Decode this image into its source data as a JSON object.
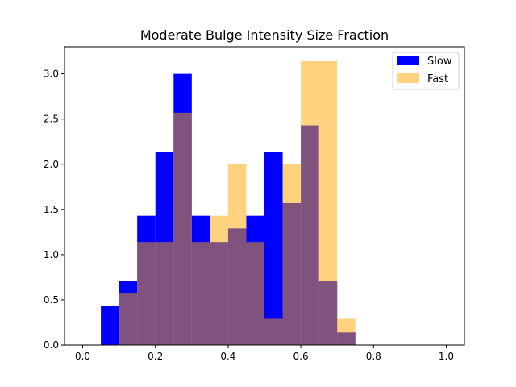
{
  "chart_data": {
    "type": "bar",
    "title": "Moderate Bulge Intensity Size Fraction",
    "xlabel": "",
    "ylabel": "",
    "xlim": [
      -0.05,
      1.05
    ],
    "ylim": [
      0,
      3.3
    ],
    "xticks": [
      "0.0",
      "0.2",
      "0.4",
      "0.6",
      "0.8",
      "1.0"
    ],
    "yticks": [
      "0.0",
      "0.5",
      "1.0",
      "1.5",
      "2.0",
      "2.5",
      "3.0"
    ],
    "bin_edges": [
      0.0,
      0.05,
      0.1,
      0.15,
      0.2,
      0.25,
      0.3,
      0.35,
      0.4,
      0.45,
      0.5,
      0.55,
      0.6,
      0.65,
      0.7,
      0.75,
      0.8,
      0.85,
      0.9,
      0.95,
      1.0
    ],
    "series": [
      {
        "name": "Slow",
        "color": "#0000ff",
        "alpha": 1.0,
        "values": [
          0,
          0.43,
          0.71,
          1.43,
          2.14,
          3.0,
          1.43,
          1.14,
          1.29,
          1.43,
          2.14,
          1.57,
          2.43,
          0.71,
          0.14,
          0,
          0,
          0,
          0,
          0
        ]
      },
      {
        "name": "Fast",
        "color": "#ffa500",
        "alpha": 0.5,
        "values": [
          0,
          0,
          0.57,
          1.14,
          1.14,
          2.57,
          1.14,
          1.43,
          2.0,
          1.14,
          0.29,
          2.0,
          3.14,
          3.14,
          0.29,
          0,
          0,
          0,
          0,
          0
        ]
      }
    ],
    "legend_position": "top-right",
    "grid": false
  }
}
